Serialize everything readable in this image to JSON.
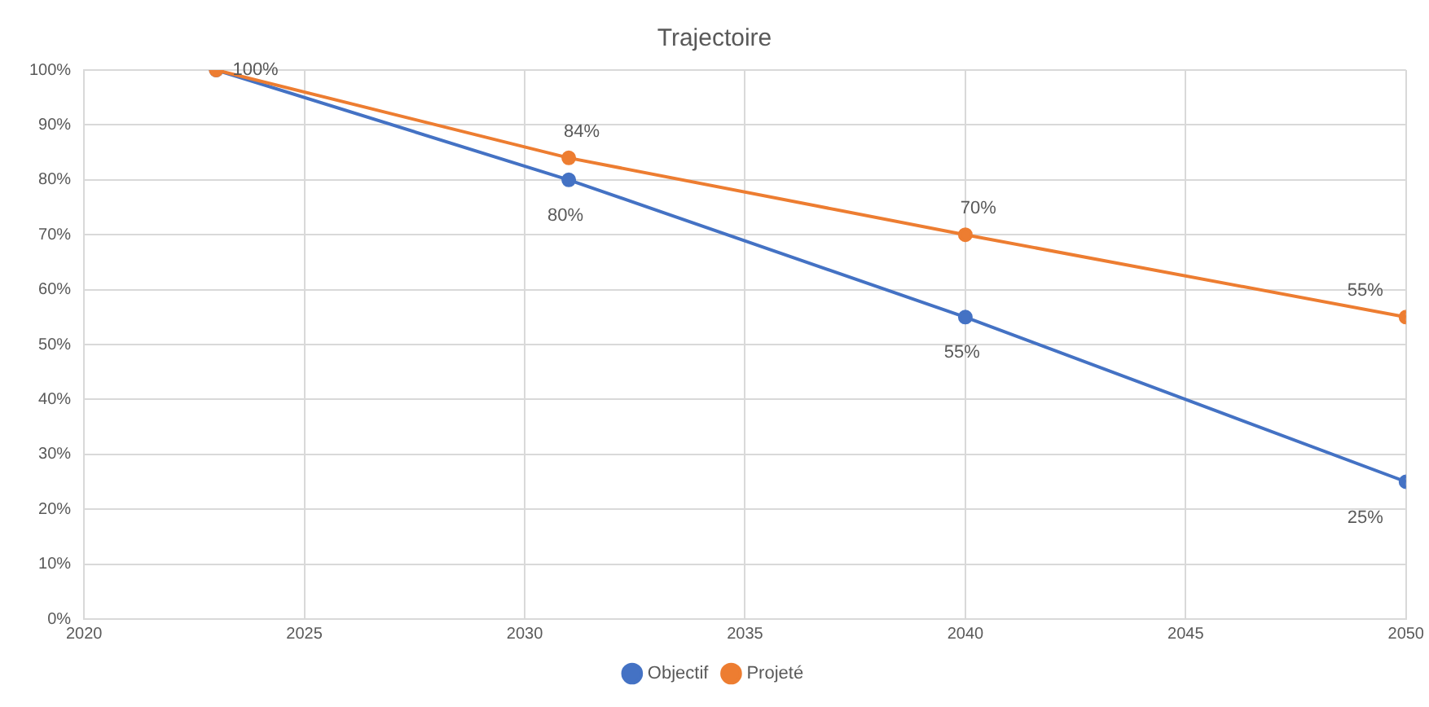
{
  "chart_data": {
    "type": "line",
    "title": "Trajectoire",
    "xlim": [
      2020,
      2050
    ],
    "xticks": [
      2020,
      2025,
      2030,
      2035,
      2040,
      2045,
      2050
    ],
    "ylim": [
      0,
      100
    ],
    "yticks": [
      {
        "value": 0,
        "label": "0%"
      },
      {
        "value": 10,
        "label": "10%"
      },
      {
        "value": 20,
        "label": "20%"
      },
      {
        "value": 30,
        "label": "30%"
      },
      {
        "value": 40,
        "label": "40%"
      },
      {
        "value": 50,
        "label": "50%"
      },
      {
        "value": 60,
        "label": "60%"
      },
      {
        "value": 70,
        "label": "70%"
      },
      {
        "value": 80,
        "label": "80%"
      },
      {
        "value": 90,
        "label": "90%"
      },
      {
        "value": 100,
        "label": "100%"
      }
    ],
    "x": [
      2023,
      2031,
      2040,
      2050
    ],
    "series": [
      {
        "name": "Objectif",
        "color": "#4472c4",
        "values": [
          100,
          80,
          55,
          25
        ],
        "value_labels": [
          null,
          "80%",
          "55%",
          "25%"
        ]
      },
      {
        "name": "Projeté",
        "color": "#ed7d31",
        "values": [
          100,
          84,
          70,
          55
        ],
        "value_labels": [
          "100%",
          "84%",
          "70%",
          "55%"
        ]
      }
    ],
    "grid": true,
    "legend": "bottom",
    "marker": "circle",
    "line_style": "solid"
  }
}
